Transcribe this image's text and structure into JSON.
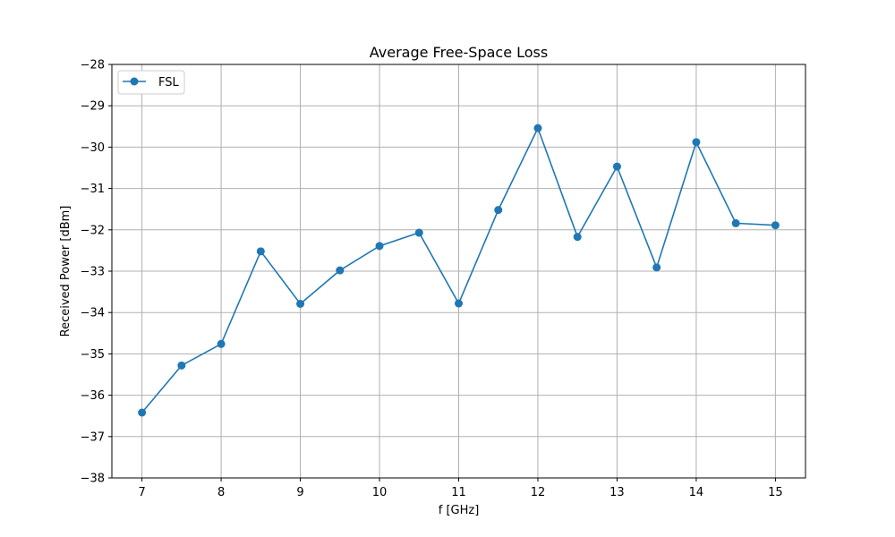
{
  "chart_data": {
    "type": "line",
    "title": "Average Free-Space Loss",
    "xlabel": "f [GHz]",
    "ylabel": "Received Power [dBm]",
    "xlim": [
      6.62,
      15.38
    ],
    "ylim": [
      -38,
      -28
    ],
    "xticks": [
      7,
      8,
      9,
      10,
      11,
      12,
      13,
      14,
      15
    ],
    "yticks": [
      -28,
      -29,
      -30,
      -31,
      -32,
      -33,
      -34,
      -35,
      -36,
      -37,
      -38
    ],
    "xtick_labels": [
      "7",
      "8",
      "9",
      "10",
      "11",
      "12",
      "13",
      "14",
      "15"
    ],
    "ytick_labels": [
      "−28",
      "−29",
      "−30",
      "−31",
      "−32",
      "−33",
      "−34",
      "−35",
      "−36",
      "−37",
      "−38"
    ],
    "grid": true,
    "legend_position": "top-left",
    "series": [
      {
        "name": "FSL",
        "color": "#1f77b4",
        "marker": "circle",
        "x": [
          7,
          7.5,
          8,
          8.5,
          9,
          9.5,
          10,
          10.5,
          11,
          11.5,
          12,
          12.5,
          13,
          13.5,
          14,
          14.5,
          15
        ],
        "y": [
          -36.42,
          -35.28,
          -34.76,
          -32.52,
          -33.79,
          -32.98,
          -32.39,
          -32.07,
          -33.78,
          -31.52,
          -29.54,
          -32.17,
          -30.47,
          -32.91,
          -29.88,
          -31.84,
          -31.89
        ]
      }
    ]
  }
}
